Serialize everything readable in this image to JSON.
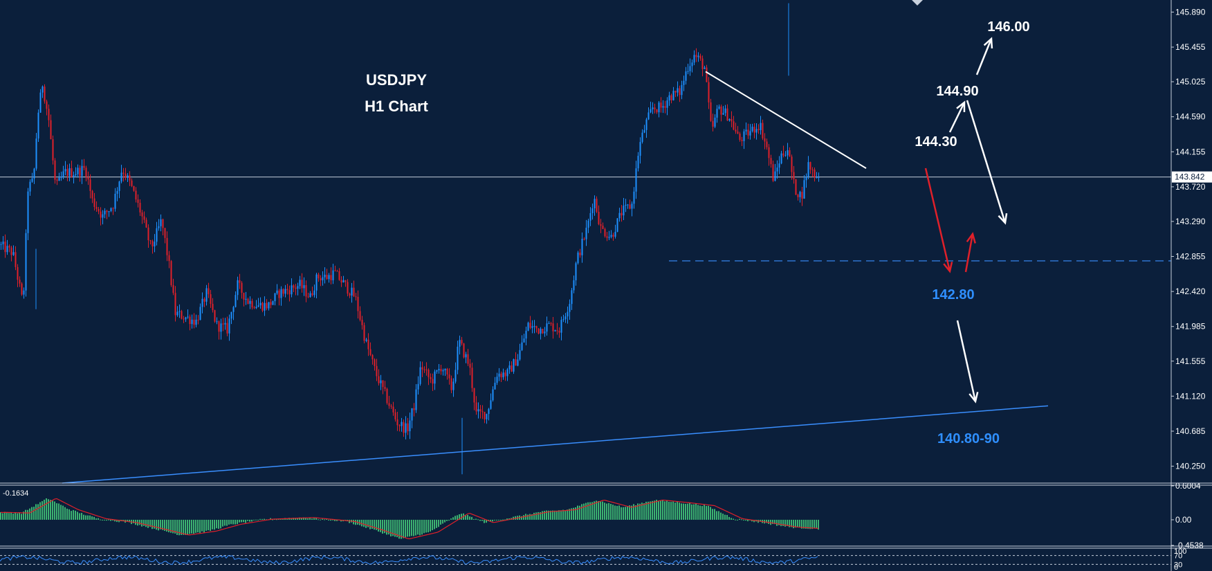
{
  "title": {
    "line1": "USDJPY",
    "line2": "H1 Chart"
  },
  "colors": {
    "background": "#0b1f3b",
    "bull": "#1e90ff",
    "bear": "#e0202a",
    "macd_hist": "#3cb371",
    "macd_signal": "#e0202a",
    "axis": "#c8d0dc",
    "annotation_white": "#ffffff",
    "annotation_blue": "#2f8fff"
  },
  "chart_data": {
    "type": "candlestick",
    "symbol": "USDJPY",
    "timeframe": "H1",
    "ylim": [
      140.04,
      146.04
    ],
    "y_ticks": [
      "145.890",
      "145.455",
      "145.025",
      "144.590",
      "144.155",
      "143.720",
      "143.290",
      "142.855",
      "142.420",
      "141.985",
      "141.555",
      "141.120",
      "140.685",
      "140.250"
    ],
    "current_price": "143.842",
    "price_path": [
      [
        0,
        143.0
      ],
      [
        20,
        142.9
      ],
      [
        35,
        142.25
      ],
      [
        42,
        143.7
      ],
      [
        50,
        143.8
      ],
      [
        56,
        144.6
      ],
      [
        63,
        145.0
      ],
      [
        72,
        144.55
      ],
      [
        82,
        143.7
      ],
      [
        95,
        143.9
      ],
      [
        110,
        143.9
      ],
      [
        125,
        143.95
      ],
      [
        135,
        143.55
      ],
      [
        150,
        143.35
      ],
      [
        165,
        143.5
      ],
      [
        178,
        143.95
      ],
      [
        190,
        143.75
      ],
      [
        205,
        143.4
      ],
      [
        220,
        142.95
      ],
      [
        235,
        143.3
      ],
      [
        245,
        142.8
      ],
      [
        255,
        142.15
      ],
      [
        270,
        142.1
      ],
      [
        285,
        142.05
      ],
      [
        300,
        142.4
      ],
      [
        315,
        142.0
      ],
      [
        330,
        141.95
      ],
      [
        345,
        142.5
      ],
      [
        360,
        142.3
      ],
      [
        375,
        142.25
      ],
      [
        390,
        142.25
      ],
      [
        405,
        142.4
      ],
      [
        420,
        142.45
      ],
      [
        435,
        142.5
      ],
      [
        450,
        142.35
      ],
      [
        460,
        142.6
      ],
      [
        475,
        142.6
      ],
      [
        485,
        142.65
      ],
      [
        500,
        142.5
      ],
      [
        515,
        142.35
      ],
      [
        530,
        141.8
      ],
      [
        545,
        141.4
      ],
      [
        560,
        141.1
      ],
      [
        575,
        140.8
      ],
      [
        590,
        140.7
      ],
      [
        600,
        141.0
      ],
      [
        610,
        141.5
      ],
      [
        625,
        141.3
      ],
      [
        640,
        141.5
      ],
      [
        655,
        141.2
      ],
      [
        665,
        141.8
      ],
      [
        680,
        141.5
      ],
      [
        690,
        140.9
      ],
      [
        705,
        140.9
      ],
      [
        720,
        141.4
      ],
      [
        735,
        141.4
      ],
      [
        750,
        141.6
      ],
      [
        765,
        142.0
      ],
      [
        780,
        141.95
      ],
      [
        795,
        142.0
      ],
      [
        810,
        141.95
      ],
      [
        825,
        142.3
      ],
      [
        835,
        142.8
      ],
      [
        850,
        143.2
      ],
      [
        860,
        143.6
      ],
      [
        870,
        143.2
      ],
      [
        885,
        143.1
      ],
      [
        900,
        143.4
      ],
      [
        915,
        143.5
      ],
      [
        925,
        144.2
      ],
      [
        935,
        144.5
      ],
      [
        945,
        144.7
      ],
      [
        958,
        144.7
      ],
      [
        970,
        144.85
      ],
      [
        985,
        144.9
      ],
      [
        995,
        145.2
      ],
      [
        1005,
        145.35
      ],
      [
        1012,
        145.3
      ],
      [
        1020,
        145.2
      ],
      [
        1030,
        144.4
      ],
      [
        1040,
        144.7
      ],
      [
        1055,
        144.6
      ],
      [
        1070,
        144.3
      ],
      [
        1085,
        144.4
      ],
      [
        1100,
        144.5
      ],
      [
        1110,
        144.2
      ],
      [
        1120,
        143.8
      ],
      [
        1130,
        144.1
      ],
      [
        1140,
        144.2
      ],
      [
        1150,
        143.7
      ],
      [
        1160,
        143.6
      ],
      [
        1170,
        144.0
      ],
      [
        1182,
        143.84
      ]
    ],
    "annotations": [
      {
        "text": "146.00",
        "color": "white"
      },
      {
        "text": "144.90",
        "color": "white"
      },
      {
        "text": "144.30",
        "color": "white"
      },
      {
        "text": "142.80",
        "color": "blue"
      },
      {
        "text": "140.80-90",
        "color": "blue"
      }
    ],
    "trendlines": [
      {
        "name": "descending resistance",
        "from": [
          1020,
          145.15
        ],
        "to": [
          1252,
          143.95
        ],
        "color": "white"
      },
      {
        "name": "ascending support",
        "from": [
          90,
          140.04
        ],
        "to": [
          1515,
          141.0
        ],
        "color": "blue"
      },
      {
        "name": "support level",
        "value": 142.8,
        "style": "dashed",
        "color": "blue"
      }
    ],
    "indicator_macd": {
      "label": "-0.1634",
      "y_ticks": [
        "0.6004",
        "0.00",
        "-0.4538"
      ],
      "hist_path": [
        [
          0,
          0.13
        ],
        [
          30,
          0.12
        ],
        [
          68,
          0.38
        ],
        [
          100,
          0.18
        ],
        [
          140,
          0.02
        ],
        [
          185,
          -0.05
        ],
        [
          230,
          -0.18
        ],
        [
          260,
          -0.27
        ],
        [
          300,
          -0.2
        ],
        [
          335,
          -0.08
        ],
        [
          380,
          0.01
        ],
        [
          440,
          0.04
        ],
        [
          500,
          -0.03
        ],
        [
          540,
          -0.18
        ],
        [
          578,
          -0.34
        ],
        [
          620,
          -0.22
        ],
        [
          665,
          0.12
        ],
        [
          700,
          -0.05
        ],
        [
          730,
          0.02
        ],
        [
          780,
          0.14
        ],
        [
          820,
          0.18
        ],
        [
          860,
          0.35
        ],
        [
          900,
          0.22
        ],
        [
          945,
          0.35
        ],
        [
          985,
          0.3
        ],
        [
          1020,
          0.25
        ],
        [
          1060,
          0.02
        ],
        [
          1100,
          -0.05
        ],
        [
          1140,
          -0.13
        ],
        [
          1180,
          -0.16
        ]
      ]
    },
    "indicator_sub2": {
      "y_ticks": [
        "100",
        "70",
        "30",
        "0"
      ]
    }
  }
}
